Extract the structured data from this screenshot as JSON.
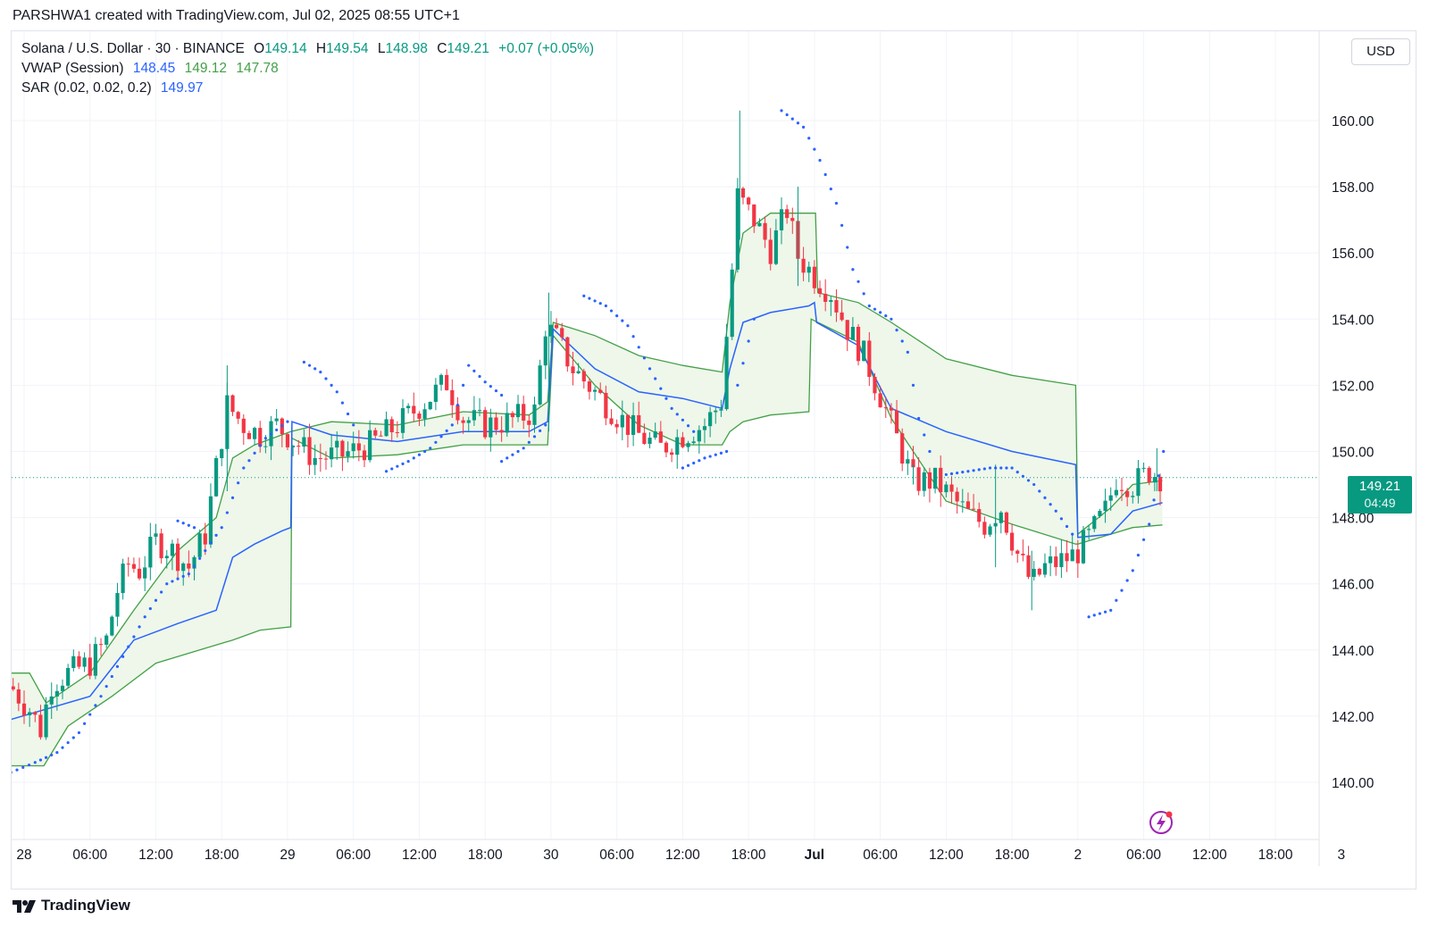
{
  "header": {
    "credit": "PARSHWA1 created with TradingView.com, Jul 02, 2025 08:55 UTC+1"
  },
  "legend": {
    "symbol": "Solana / U.S. Dollar · 30 · BINANCE",
    "open_label": "O",
    "open": "149.14",
    "high_label": "H",
    "high": "149.54",
    "low_label": "L",
    "low": "148.98",
    "close_label": "C",
    "close": "149.21",
    "change": "+0.07 (+0.05%)",
    "vwap_label": "VWAP (Session)",
    "vwap_values": [
      "148.45",
      "149.12",
      "147.78"
    ],
    "sar_label": "SAR (0.02, 0.02, 0.2)",
    "sar_value": "149.97"
  },
  "currency_button": "USD",
  "price_tag": {
    "price": "149.21",
    "countdown": "04:49"
  },
  "footer": {
    "brand": "TradingView"
  },
  "colors": {
    "up": "#089981",
    "down": "#f23645",
    "vwap": "#2962ff",
    "band": "#43a047",
    "band_fill": "#eef7ea",
    "sar": "#2962ff",
    "grid": "#f0f3fa"
  },
  "chart_data": {
    "type": "candlestick",
    "title": "Solana / U.S. Dollar · 30 · BINANCE",
    "ylim": [
      138.5,
      162
    ],
    "y_ticks": [
      140,
      142,
      144,
      146,
      148,
      150,
      152,
      154,
      156,
      158,
      160
    ],
    "y_tick_labels": [
      "140.00",
      "142.00",
      "144.00",
      "146.00",
      "148.00",
      "150.00",
      "152.00",
      "154.00",
      "156.00",
      "158.00",
      "160.00"
    ],
    "x_ticks": [
      {
        "h": 0,
        "label": "28"
      },
      {
        "h": 6,
        "label": "06:00"
      },
      {
        "h": 12,
        "label": "12:00"
      },
      {
        "h": 18,
        "label": "18:00"
      },
      {
        "h": 24,
        "label": "29"
      },
      {
        "h": 30,
        "label": "06:00"
      },
      {
        "h": 36,
        "label": "12:00"
      },
      {
        "h": 42,
        "label": "18:00"
      },
      {
        "h": 48,
        "label": "30"
      },
      {
        "h": 54,
        "label": "06:00"
      },
      {
        "h": 60,
        "label": "12:00"
      },
      {
        "h": 66,
        "label": "18:00"
      },
      {
        "h": 72,
        "label": "Jul"
      },
      {
        "h": 78,
        "label": "06:00"
      },
      {
        "h": 84,
        "label": "12:00"
      },
      {
        "h": 90,
        "label": "18:00"
      },
      {
        "h": 96,
        "label": "2"
      },
      {
        "h": 102,
        "label": "06:00"
      },
      {
        "h": 108,
        "label": "12:00"
      },
      {
        "h": 114,
        "label": "18:00"
      },
      {
        "h": 120,
        "label": "3"
      }
    ],
    "last_price": 149.21,
    "close_path": [
      [
        -1.2,
        142.9
      ],
      [
        0.5,
        142.2
      ],
      [
        1.5,
        141.6
      ],
      [
        2.5,
        143.0
      ],
      [
        4.0,
        143.3
      ],
      [
        6.0,
        143.6
      ],
      [
        7.5,
        144.3
      ],
      [
        8.5,
        145.8
      ],
      [
        9.5,
        146.6
      ],
      [
        10.5,
        146.4
      ],
      [
        12.0,
        147.3
      ],
      [
        13.5,
        147.0
      ],
      [
        15.0,
        146.5
      ],
      [
        16.5,
        147.5
      ],
      [
        17.5,
        149.5
      ],
      [
        18.5,
        151.4
      ],
      [
        20.0,
        150.8
      ],
      [
        21.5,
        150.5
      ],
      [
        23.0,
        150.8
      ],
      [
        25.0,
        150.2
      ],
      [
        26.5,
        149.8
      ],
      [
        29.0,
        149.9
      ],
      [
        31.5,
        150.2
      ],
      [
        34.0,
        150.8
      ],
      [
        36.5,
        151.5
      ],
      [
        38.5,
        152.1
      ],
      [
        40.0,
        151.0
      ],
      [
        42.0,
        150.8
      ],
      [
        44.0,
        150.9
      ],
      [
        46.5,
        151.2
      ],
      [
        47.5,
        153.8
      ],
      [
        48.5,
        153.4
      ],
      [
        50.0,
        152.5
      ],
      [
        52.0,
        151.8
      ],
      [
        54.0,
        151.1
      ],
      [
        56.0,
        150.5
      ],
      [
        58.0,
        150.1
      ],
      [
        60.0,
        150.5
      ],
      [
        62.0,
        150.8
      ],
      [
        63.5,
        151.5
      ],
      [
        64.5,
        155.5
      ],
      [
        65.0,
        157.7
      ],
      [
        66.5,
        157.0
      ],
      [
        68.0,
        156.1
      ],
      [
        69.5,
        157.3
      ],
      [
        70.5,
        155.9
      ],
      [
        72.0,
        155.3
      ],
      [
        73.5,
        154.8
      ],
      [
        75.0,
        153.7
      ],
      [
        76.5,
        152.9
      ],
      [
        78.0,
        151.7
      ],
      [
        79.5,
        150.4
      ],
      [
        81.0,
        149.1
      ],
      [
        83.0,
        149.1
      ],
      [
        84.5,
        148.6
      ],
      [
        86.0,
        148.1
      ],
      [
        87.5,
        147.8
      ],
      [
        89.0,
        148.3
      ],
      [
        90.5,
        146.9
      ],
      [
        91.8,
        146.0
      ],
      [
        93.0,
        146.5
      ],
      [
        94.5,
        146.7
      ],
      [
        95.8,
        146.9
      ],
      [
        97.0,
        147.4
      ],
      [
        98.5,
        148.2
      ],
      [
        99.5,
        149.2
      ],
      [
        101.0,
        149.0
      ],
      [
        102.5,
        149.4
      ],
      [
        103.7,
        149.21
      ]
    ],
    "vwap_session": [
      [
        -1.2,
        141.9
      ],
      [
        6,
        142.6
      ],
      [
        10,
        144.3
      ],
      [
        14,
        144.8
      ],
      [
        17.5,
        145.2
      ],
      [
        19,
        146.8
      ],
      [
        21,
        147.2
      ],
      [
        23.5,
        147.6
      ],
      [
        24.3,
        147.7
      ],
      [
        24.4,
        150.9
      ],
      [
        28,
        150.5
      ],
      [
        34,
        150.3
      ],
      [
        40,
        150.6
      ],
      [
        46,
        150.6
      ],
      [
        47.7,
        150.9
      ],
      [
        48.2,
        153.7
      ],
      [
        52,
        152.5
      ],
      [
        56,
        151.8
      ],
      [
        60,
        151.6
      ],
      [
        63.6,
        151.3
      ],
      [
        64.3,
        152.5
      ],
      [
        65.5,
        153.9
      ],
      [
        68,
        154.2
      ],
      [
        71.5,
        154.4
      ],
      [
        72.0,
        154.5
      ],
      [
        72.2,
        153.9
      ],
      [
        76,
        153.2
      ],
      [
        79,
        151.3
      ],
      [
        84,
        150.6
      ],
      [
        90,
        150.0
      ],
      [
        95.8,
        149.6
      ],
      [
        96.0,
        147.4
      ],
      [
        99,
        147.5
      ],
      [
        101,
        148.2
      ],
      [
        103.7,
        148.45
      ]
    ],
    "vwap_upper": [
      [
        -1.2,
        143.3
      ],
      [
        0.5,
        143.3
      ],
      [
        2,
        142.4
      ],
      [
        6,
        143.3
      ],
      [
        10,
        145.2
      ],
      [
        14,
        147.0
      ],
      [
        17.5,
        148.0
      ],
      [
        19,
        149.8
      ],
      [
        21,
        150.2
      ],
      [
        24.3,
        150.6
      ],
      [
        28,
        150.9
      ],
      [
        34,
        150.8
      ],
      [
        40,
        151.2
      ],
      [
        46,
        151.1
      ],
      [
        47.7,
        151.5
      ],
      [
        48.2,
        153.9
      ],
      [
        52,
        153.5
      ],
      [
        56,
        152.9
      ],
      [
        60,
        152.6
      ],
      [
        63.6,
        152.4
      ],
      [
        64.3,
        154.5
      ],
      [
        65.5,
        156.6
      ],
      [
        68,
        157.2
      ],
      [
        71.5,
        157.2
      ],
      [
        72.1,
        157.2
      ],
      [
        72.3,
        154.8
      ],
      [
        76,
        154.5
      ],
      [
        79,
        153.9
      ],
      [
        84,
        152.8
      ],
      [
        90,
        152.3
      ],
      [
        95.8,
        152.0
      ],
      [
        96.0,
        147.5
      ],
      [
        99,
        148.3
      ],
      [
        101,
        149.0
      ],
      [
        103.7,
        149.12
      ]
    ],
    "vwap_lower": [
      [
        -1.2,
        140.5
      ],
      [
        1.8,
        140.5
      ],
      [
        4,
        141.7
      ],
      [
        8,
        142.6
      ],
      [
        12,
        143.6
      ],
      [
        16,
        144.0
      ],
      [
        19,
        144.3
      ],
      [
        21.5,
        144.6
      ],
      [
        24.3,
        144.7
      ],
      [
        24.4,
        150.4
      ],
      [
        28,
        149.8
      ],
      [
        34,
        149.9
      ],
      [
        40,
        150.2
      ],
      [
        46,
        150.2
      ],
      [
        47.7,
        150.2
      ],
      [
        48.2,
        153.5
      ],
      [
        52,
        152.0
      ],
      [
        56,
        150.8
      ],
      [
        60,
        150.2
      ],
      [
        63.6,
        150.2
      ],
      [
        64.3,
        150.6
      ],
      [
        65.5,
        150.9
      ],
      [
        68,
        151.1
      ],
      [
        71.5,
        151.2
      ],
      [
        71.7,
        154.0
      ],
      [
        76,
        153.3
      ],
      [
        79,
        151.0
      ],
      [
        84,
        148.5
      ],
      [
        90,
        147.8
      ],
      [
        95.8,
        147.2
      ],
      [
        96.0,
        147.2
      ],
      [
        99,
        147.5
      ],
      [
        101,
        147.7
      ],
      [
        103.7,
        147.78
      ]
    ],
    "sar_segments": [
      [
        [
          -1.2,
          140.3
        ],
        [
          1,
          140.6
        ],
        [
          3,
          140.9
        ],
        [
          5,
          141.5
        ],
        [
          7,
          142.6
        ],
        [
          9,
          143.8
        ],
        [
          11,
          145.0
        ],
        [
          13,
          146.0
        ],
        [
          15,
          146.3
        ],
        [
          16.5,
          147.0
        ],
        [
          18,
          147.7
        ],
        [
          20,
          149.5
        ],
        [
          22,
          150.4
        ],
        [
          24,
          150.9
        ]
      ],
      [
        [
          14,
          147.9
        ],
        [
          15.5,
          147.7
        ]
      ],
      [
        [
          25.5,
          152.7
        ],
        [
          27,
          152.4
        ],
        [
          28.5,
          151.8
        ],
        [
          30,
          150.8
        ]
      ],
      [
        [
          33,
          149.4
        ],
        [
          35,
          149.7
        ],
        [
          37,
          150.1
        ],
        [
          39,
          150.8
        ],
        [
          40.5,
          152.6
        ],
        [
          42,
          152.1
        ],
        [
          43.5,
          151.7
        ]
      ],
      [
        [
          43.5,
          149.7
        ],
        [
          45.5,
          150.1
        ],
        [
          47.5,
          150.8
        ]
      ],
      [
        [
          51,
          154.7
        ],
        [
          53,
          154.4
        ],
        [
          55,
          153.8
        ],
        [
          57,
          152.5
        ],
        [
          59,
          151.3
        ],
        [
          61,
          150.6
        ]
      ],
      [
        [
          60,
          149.5
        ],
        [
          62,
          149.8
        ],
        [
          64,
          150.0
        ]
      ],
      [
        [
          65,
          152.0
        ],
        [
          66.5,
          154.0
        ]
      ],
      [
        [
          69,
          160.3
        ],
        [
          71,
          159.8
        ],
        [
          72.5,
          158.8
        ],
        [
          74,
          157.5
        ],
        [
          75.5,
          155.5
        ],
        [
          77,
          154.4
        ],
        [
          79,
          154.0
        ],
        [
          80.5,
          153.0
        ],
        [
          81.5,
          151.0
        ],
        [
          82.5,
          150.0
        ]
      ],
      [
        [
          84,
          149.3
        ],
        [
          86,
          149.4
        ],
        [
          88,
          149.5
        ],
        [
          90,
          149.5
        ],
        [
          92,
          149.0
        ],
        [
          94,
          148.2
        ],
        [
          95.5,
          147.5
        ]
      ],
      [
        [
          97,
          145.0
        ],
        [
          99,
          145.2
        ],
        [
          101,
          146.4
        ],
        [
          102.5,
          147.8
        ],
        [
          103.8,
          150.0
        ]
      ]
    ],
    "wicks": [
      [
        65.2,
        156.4,
        160.3
      ],
      [
        70.5,
        155.0,
        158.0
      ],
      [
        91.8,
        145.2,
        147.0
      ],
      [
        18.5,
        148.8,
        152.6
      ],
      [
        47.8,
        150.6,
        154.8
      ],
      [
        103.2,
        148.8,
        150.1
      ],
      [
        81.0,
        149.0,
        149.6
      ],
      [
        88.5,
        146.5,
        149.6
      ]
    ]
  }
}
